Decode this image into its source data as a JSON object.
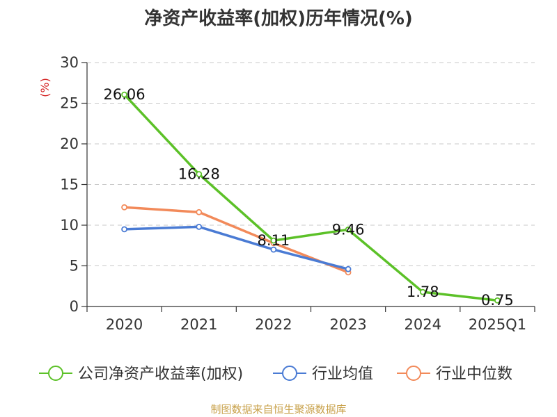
{
  "chart_data": {
    "type": "line",
    "title": "净资产收益率(加权)历年情况(%)",
    "ylabel": "(%)",
    "xlabel": "",
    "categories": [
      "2020",
      "2021",
      "2022",
      "2023",
      "2024",
      "2025Q1"
    ],
    "ylim": [
      0,
      30
    ],
    "yticks": [
      0,
      5,
      10,
      15,
      20,
      25,
      30
    ],
    "grid": true,
    "legend_position": "bottom",
    "series": [
      {
        "name": "公司净资产收益率(加权)",
        "color": "#5cc128",
        "values": [
          26.06,
          16.28,
          8.11,
          9.46,
          1.78,
          0.75
        ],
        "labels": [
          "26.06",
          "16.28",
          "8.11",
          "9.46",
          "1.78",
          "0.75"
        ]
      },
      {
        "name": "行业均值",
        "color": "#4a7bd4",
        "values": [
          9.5,
          9.8,
          7.0,
          4.6,
          null,
          null
        ],
        "labels": []
      },
      {
        "name": "行业中位数",
        "color": "#f28a5a",
        "values": [
          12.2,
          11.6,
          7.8,
          4.2,
          null,
          null
        ],
        "labels": []
      }
    ],
    "ylabel_color": "#d42020"
  },
  "source": "制图数据来自恒生聚源数据库"
}
